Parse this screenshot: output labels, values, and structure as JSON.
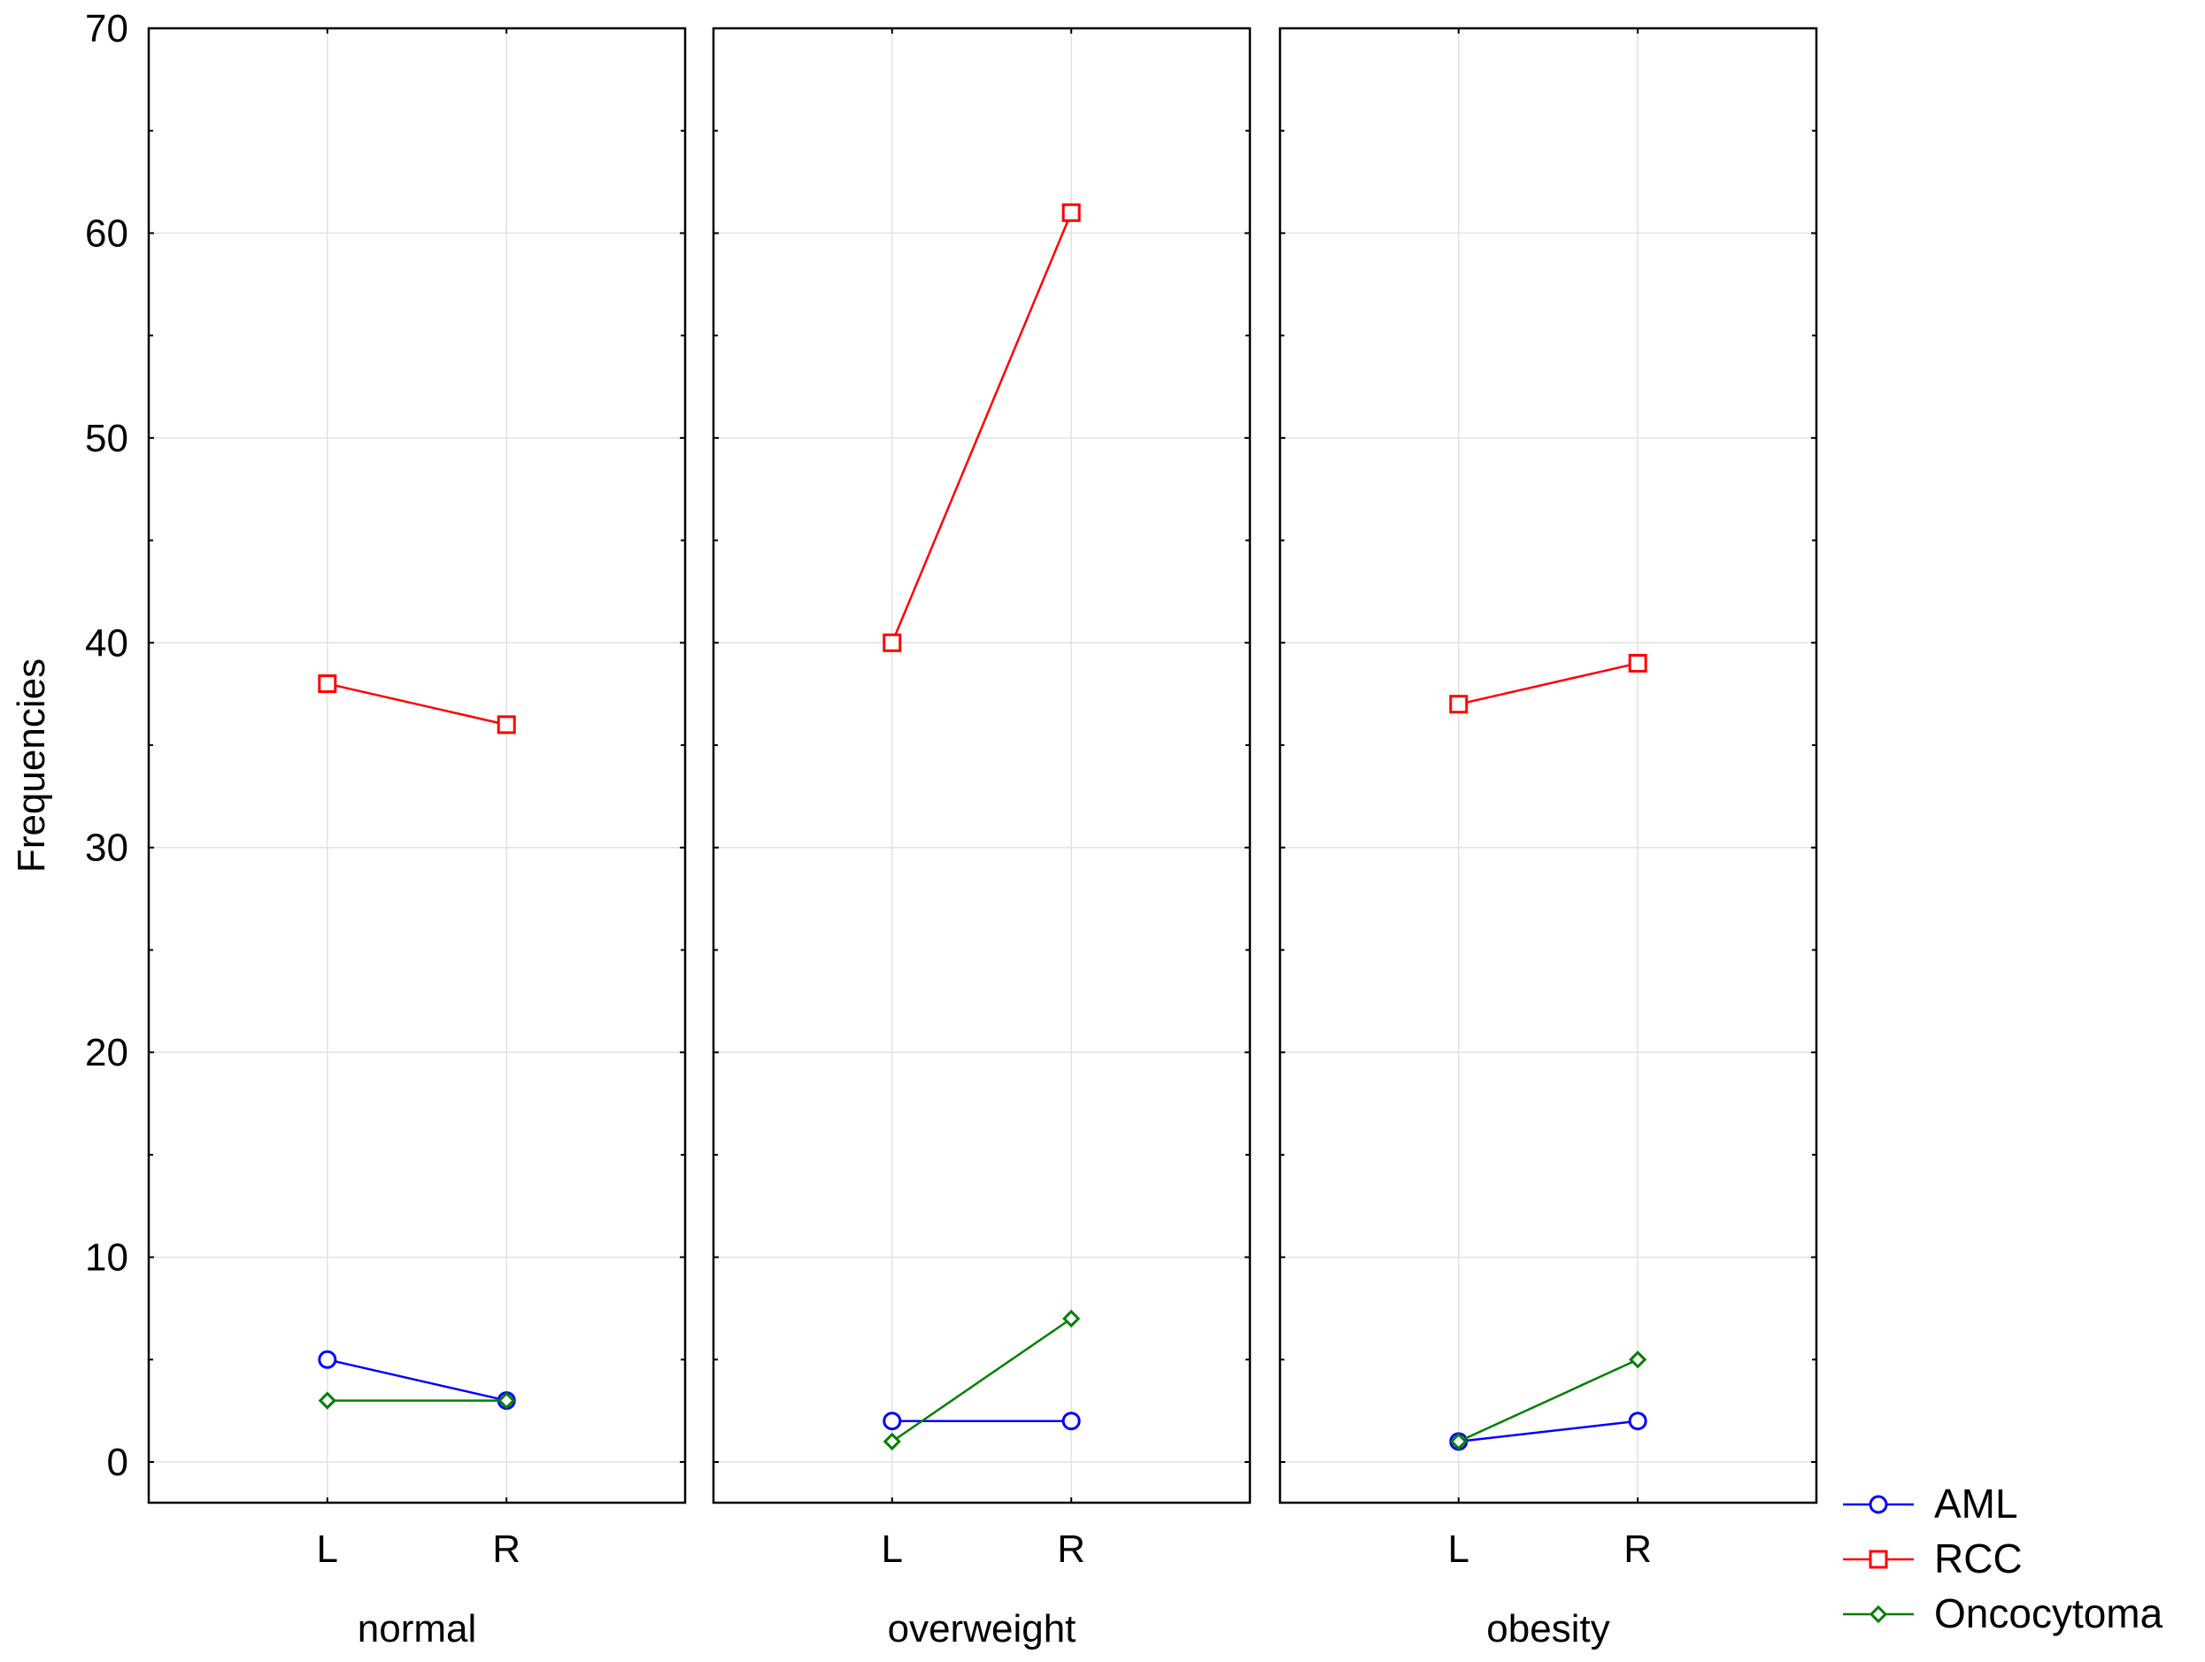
{
  "chart_data": {
    "type": "line",
    "ylabel": "Frequencies",
    "ylim": [
      0,
      70
    ],
    "yticks": [
      0,
      10,
      20,
      30,
      40,
      50,
      60,
      70
    ],
    "categories": [
      "L",
      "R"
    ],
    "grid": true,
    "legend_position": "bottom-right",
    "panels": [
      {
        "label": "normal",
        "series": [
          {
            "name": "AML",
            "values": [
              5,
              3
            ]
          },
          {
            "name": "RCC",
            "values": [
              38,
              36
            ]
          },
          {
            "name": "Oncocytoma",
            "values": [
              3,
              3
            ]
          }
        ]
      },
      {
        "label": "overweight",
        "series": [
          {
            "name": "AML",
            "values": [
              2,
              2
            ]
          },
          {
            "name": "RCC",
            "values": [
              40,
              61
            ]
          },
          {
            "name": "Oncocytoma",
            "values": [
              1,
              7
            ]
          }
        ]
      },
      {
        "label": "obesity",
        "series": [
          {
            "name": "AML",
            "values": [
              1,
              2
            ]
          },
          {
            "name": "RCC",
            "values": [
              37,
              39
            ]
          },
          {
            "name": "Oncocytoma",
            "values": [
              1,
              5
            ]
          }
        ]
      }
    ],
    "legend": [
      {
        "name": "AML",
        "color": "#0000ff",
        "marker": "circle"
      },
      {
        "name": "RCC",
        "color": "#ff0000",
        "marker": "square"
      },
      {
        "name": "Oncocytoma",
        "color": "#008000",
        "marker": "diamond"
      }
    ]
  }
}
